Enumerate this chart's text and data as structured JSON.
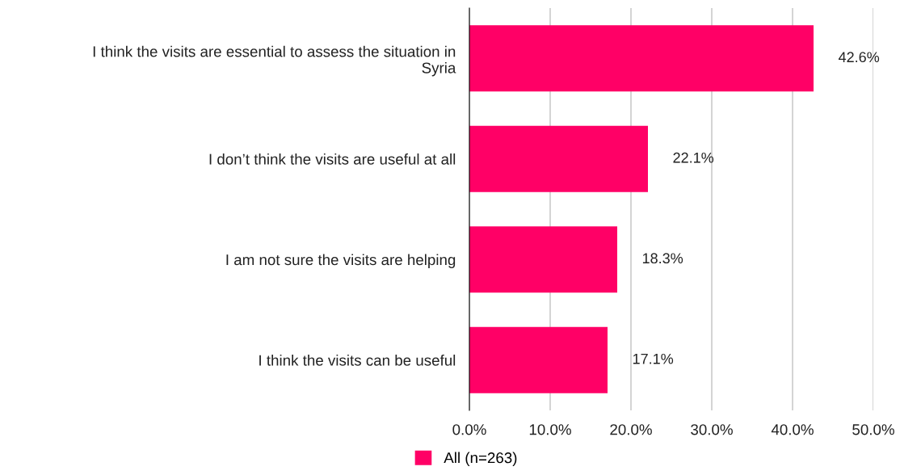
{
  "chart_data": {
    "type": "bar",
    "orientation": "horizontal",
    "categories": [
      "I think the visits are essential to assess the situation in\nSyria",
      "I don’t think the visits are useful at all",
      "I am not sure the visits are helping",
      "I think the visits can be useful"
    ],
    "series": [
      {
        "name": "All (n=263)",
        "color": "#ff0066",
        "values": [
          42.6,
          22.1,
          18.3,
          17.1
        ],
        "value_labels": [
          "42.6%",
          "22.1%",
          "18.3%",
          "17.1%"
        ]
      }
    ],
    "xlim": [
      0,
      50
    ],
    "xticks": [
      {
        "value": 0,
        "label": "0.0%"
      },
      {
        "value": 10,
        "label": "10.0%"
      },
      {
        "value": 20,
        "label": "20.0%"
      },
      {
        "value": 30,
        "label": "30.0%"
      },
      {
        "value": 40,
        "label": "40.0%"
      },
      {
        "value": 50,
        "label": "50.0%"
      }
    ],
    "grid": "x",
    "legend": "bottom"
  }
}
